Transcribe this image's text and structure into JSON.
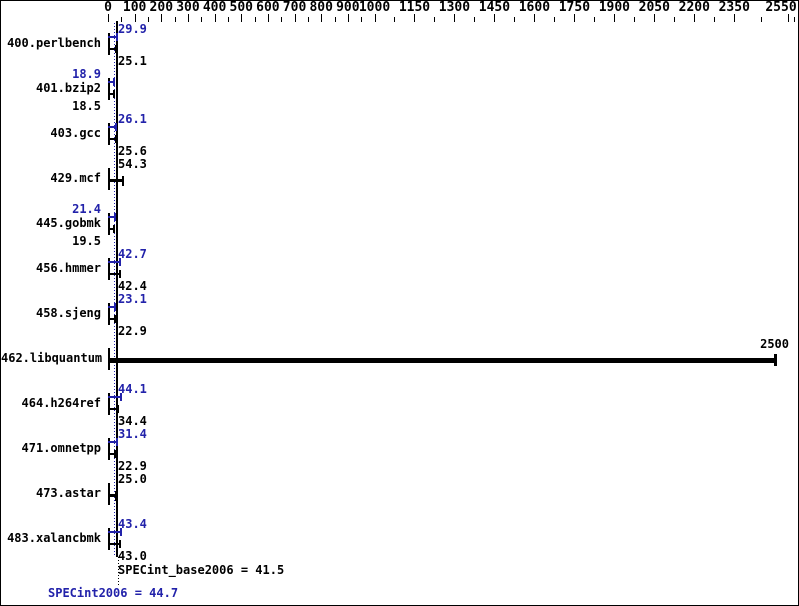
{
  "colors": {
    "peak_blue": "#2222aa",
    "base_black": "#000000",
    "background": "#ffffff"
  },
  "chart_data": {
    "type": "bar",
    "orientation": "horizontal",
    "title": "",
    "x_axis": {
      "min": 0,
      "max": 2550,
      "tick_labels": [
        "0",
        "100",
        "200",
        "300",
        "400",
        "500",
        "600",
        "700",
        "800",
        "900",
        "1000",
        "1150",
        "1300",
        "1450",
        "1600",
        "1750",
        "1900",
        "2050",
        "2200",
        "2350",
        "2550"
      ],
      "tick_values": [
        0,
        100,
        200,
        300,
        400,
        500,
        600,
        700,
        800,
        900,
        1000,
        1150,
        1300,
        1450,
        1600,
        1750,
        1900,
        2050,
        2200,
        2350,
        2550
      ],
      "minor_ticks_between_labels": true
    },
    "series": [
      {
        "name": "peak",
        "color": "#2222aa"
      },
      {
        "name": "base",
        "color": "#000000"
      }
    ],
    "benchmarks": [
      {
        "name": "400.perlbench",
        "peak": 29.9,
        "peak_label": "29.9",
        "base": 25.1,
        "base_label": "25.1",
        "values_side": "right"
      },
      {
        "name": "401.bzip2",
        "peak": 18.9,
        "peak_label": "18.9",
        "base": 18.5,
        "base_label": "18.5",
        "values_side": "left"
      },
      {
        "name": "403.gcc",
        "peak": 26.1,
        "peak_label": "26.1",
        "base": 25.6,
        "base_label": "25.6",
        "values_side": "right"
      },
      {
        "name": "429.mcf",
        "single": true,
        "value": 54.3,
        "value_label": "54.3",
        "values_side": "right"
      },
      {
        "name": "445.gobmk",
        "peak": 21.4,
        "peak_label": "21.4",
        "base": 19.5,
        "base_label": "19.5",
        "values_side": "left"
      },
      {
        "name": "456.hmmer",
        "peak": 42.7,
        "peak_label": "42.7",
        "base": 42.4,
        "base_label": "42.4",
        "values_side": "right"
      },
      {
        "name": "458.sjeng",
        "peak": 23.1,
        "peak_label": "23.1",
        "base": 22.9,
        "base_label": "22.9",
        "values_side": "right"
      },
      {
        "name": "462.libquantum",
        "single": true,
        "big": true,
        "value": 2500,
        "value_label": "2500",
        "values_side": "bar_end"
      },
      {
        "name": "464.h264ref",
        "peak": 44.1,
        "peak_label": "44.1",
        "base": 34.4,
        "base_label": "34.4",
        "values_side": "right"
      },
      {
        "name": "471.omnetpp",
        "peak": 31.4,
        "peak_label": "31.4",
        "base": 22.9,
        "base_label": "22.9",
        "values_side": "right"
      },
      {
        "name": "473.astar",
        "single": true,
        "value": 25.0,
        "value_label": "25.0",
        "values_side": "right"
      },
      {
        "name": "483.xalancbmk",
        "peak": 43.4,
        "peak_label": "43.4",
        "base": 43.0,
        "base_label": "43.0",
        "values_side": "right"
      }
    ],
    "mean_lines": {
      "base_value": 41.5,
      "peak_value": 44.7
    },
    "summary": {
      "base_text": "SPECint_base2006 = 41.5",
      "peak_text": "SPECint2006 = 44.7"
    }
  }
}
